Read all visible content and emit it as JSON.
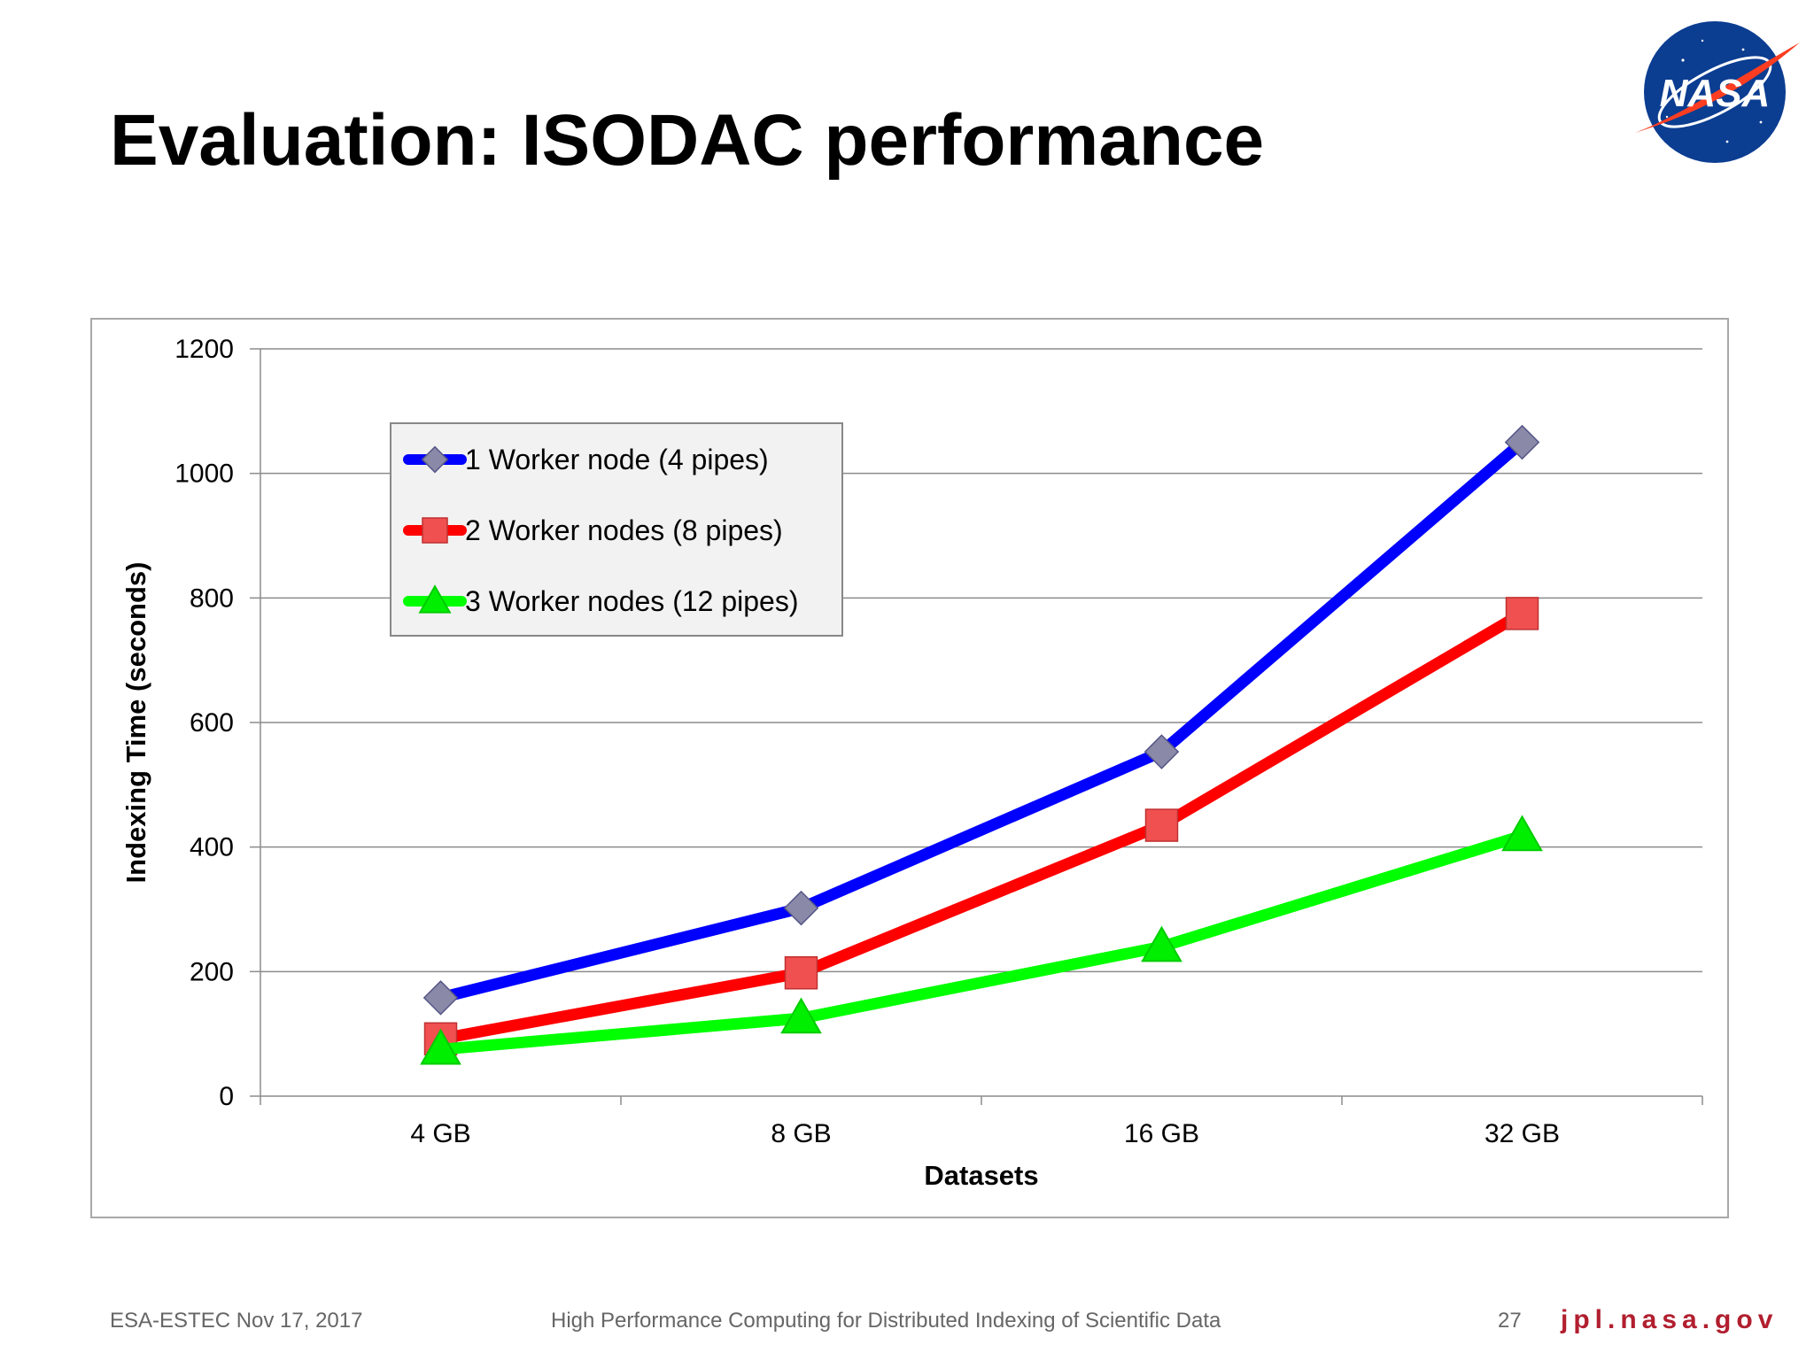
{
  "slide": {
    "title": "Evaluation: ISODAC performance",
    "logo_text": "NASA"
  },
  "footer": {
    "left": "ESA-ESTEC Nov 17, 2017",
    "center": "High Performance Computing for Distributed Indexing of Scientific Data",
    "page": "27",
    "site": "jpl.nasa.gov"
  },
  "chart_data": {
    "type": "line",
    "title": "",
    "xlabel": "Datasets",
    "ylabel": "Indexing Time (seconds)",
    "categories": [
      "4 GB",
      "8 GB",
      "16 GB",
      "32 GB"
    ],
    "ylim": [
      0,
      1200
    ],
    "yticks": [
      0,
      200,
      400,
      600,
      800,
      1000,
      1200
    ],
    "grid": true,
    "legend_position": "top-left",
    "series": [
      {
        "name": "1 Worker node (4 pipes)",
        "values": [
          158,
          302,
          553,
          1050
        ],
        "color": "#0000ff",
        "marker": "diamond",
        "marker_color": "#8a8aa8"
      },
      {
        "name": "2 Worker nodes (8 pipes)",
        "values": [
          92,
          198,
          435,
          775
        ],
        "color": "#ff0000",
        "marker": "square",
        "marker_color": "#f05050"
      },
      {
        "name": "3 Worker nodes (12 pipes)",
        "values": [
          75,
          125,
          240,
          418
        ],
        "color": "#00ff00",
        "marker": "triangle",
        "marker_color": "#00ee00"
      }
    ]
  }
}
